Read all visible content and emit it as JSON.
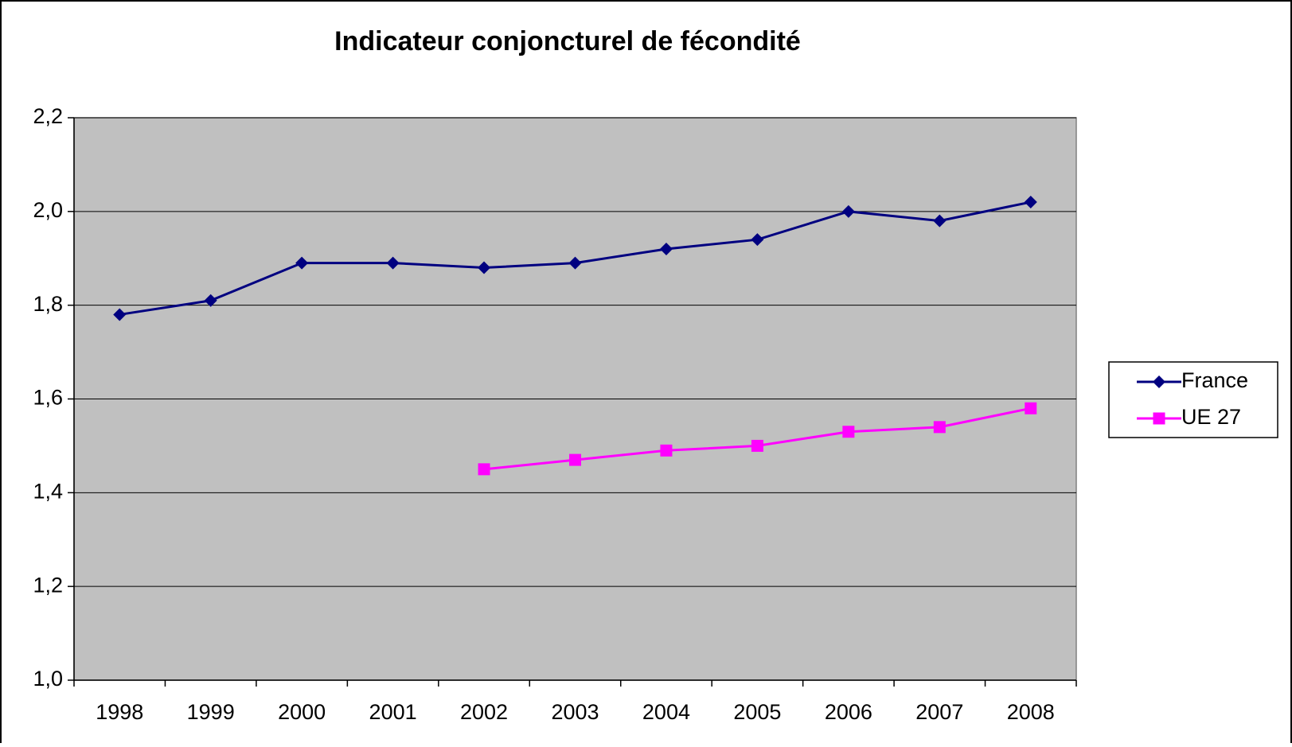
{
  "chart_data": {
    "type": "line",
    "title": "Indicateur conjoncturel de fécondité",
    "categories": [
      "1998",
      "1999",
      "2000",
      "2001",
      "2002",
      "2003",
      "2004",
      "2005",
      "2006",
      "2007",
      "2008"
    ],
    "series": [
      {
        "name": "France",
        "color": "#000080",
        "marker": "diamond",
        "values": [
          1.78,
          1.81,
          1.89,
          1.89,
          1.88,
          1.89,
          1.92,
          1.94,
          2.0,
          1.98,
          2.02
        ]
      },
      {
        "name": "UE 27",
        "color": "#ff00ff",
        "marker": "square",
        "values": [
          null,
          null,
          null,
          null,
          1.45,
          1.47,
          1.49,
          1.5,
          1.53,
          1.54,
          1.58
        ]
      }
    ],
    "ylim": [
      1.0,
      2.2
    ],
    "yticks": [
      {
        "value": 1.0,
        "label": "1,0"
      },
      {
        "value": 1.2,
        "label": "1,2"
      },
      {
        "value": 1.4,
        "label": "1,4"
      },
      {
        "value": 1.6,
        "label": "1,6"
      },
      {
        "value": 1.8,
        "label": "1,8"
      },
      {
        "value": 2.0,
        "label": "2,0"
      },
      {
        "value": 2.2,
        "label": "2,2"
      }
    ],
    "grid": true,
    "legend": "right",
    "plot_background": "#c0c0c0"
  }
}
